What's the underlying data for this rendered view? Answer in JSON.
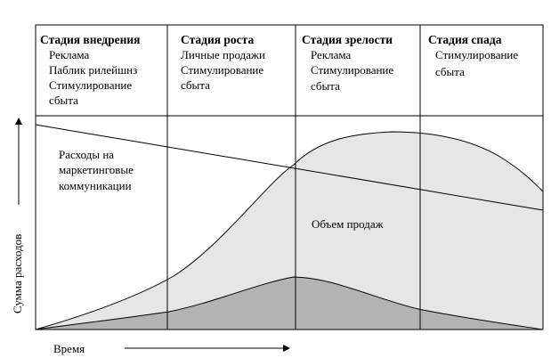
{
  "stages": [
    {
      "title": "Стадия внедрения",
      "items": [
        "Реклама",
        "Паблик рилейшнз",
        "Стимулирование",
        "сбыта"
      ]
    },
    {
      "title": "Стадия роста",
      "items": [
        "Личные продажи",
        "Стимулирование",
        "сбыта"
      ]
    },
    {
      "title": "Стадия зрелости",
      "items": [
        "Реклама",
        "Стимулирование",
        "сбыта"
      ]
    },
    {
      "title": "Стадия спада",
      "items": [
        "Стимулирование",
        "сбыта"
      ]
    }
  ],
  "labels": {
    "expenses_line1": "Расходы на",
    "expenses_line2": "маркетинговые",
    "expenses_line3": "коммуникации",
    "sales": "Объем продаж",
    "y_axis": "Сумма расходов",
    "x_axis": "Время"
  },
  "colors": {
    "sales_fill": "#e6e6e6",
    "expenses_fill": "#b3b3b3",
    "lines": "#000000"
  }
}
